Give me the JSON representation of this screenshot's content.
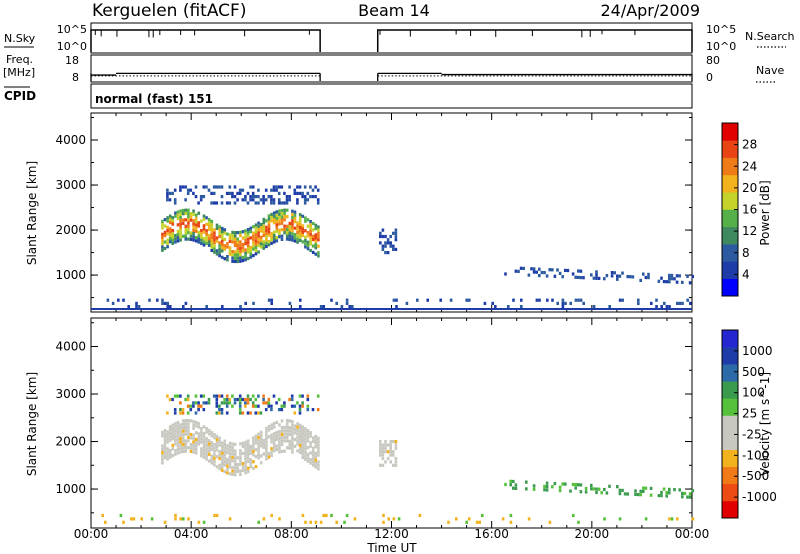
{
  "header": {
    "station": "Kerguelen (fitACF)",
    "beam": "Beam 14",
    "date": "24/Apr/2009"
  },
  "strip_labels": {
    "nsky": "N.Sky",
    "nsky_top": "10^5",
    "nsky_bottom": "10^0",
    "nsky_right_top": "10^5",
    "nsky_right_bottom": "10^0",
    "nsearch": "N.Search",
    "freq": "Freq.",
    "freq_unit": "[MHz]",
    "freq_top": "18",
    "freq_bottom": "8",
    "nave_top": "80",
    "nave_bottom": "0",
    "nave": "Nave",
    "cpid": "CPID",
    "mode": "normal (fast) 151"
  },
  "colors": {
    "power_scale": [
      "#0000ff",
      "#1e3ca8",
      "#2c5aa0",
      "#3e8a5e",
      "#55b04a",
      "#c4d22a",
      "#f2b21d",
      "#ee7a18",
      "#e84414",
      "#e00000"
    ],
    "velocity_scale": [
      "#e00000",
      "#ee4a14",
      "#f07a18",
      "#f2b21d",
      "#c8c8c0",
      "#c8c8c0",
      "#55c03a",
      "#3a9a4e",
      "#2c6aa8",
      "#1e3ca8",
      "#2626d0"
    ],
    "ground_scatter": "#c8c8c0"
  },
  "chart_data": [
    {
      "type": "heatmap",
      "title": "Power",
      "ylabel": "Slant Range [km]",
      "xlabel": "Time UT",
      "xlim": [
        "00:00",
        "24:00"
      ],
      "x_ticks": [
        "00:00",
        "04:00",
        "08:00",
        "12:00",
        "16:00",
        "20:00",
        "00:00"
      ],
      "ylim": [
        180,
        4600
      ],
      "y_ticks": [
        1000,
        2000,
        3000,
        4000
      ],
      "colorbar": {
        "label": "Power [dB]",
        "range": [
          0,
          30
        ],
        "ticks": [
          "4",
          "8",
          "12",
          "16",
          "20",
          "24",
          "28"
        ]
      },
      "regions": [
        {
          "name": "main echo band",
          "t_start": 2.8,
          "t_end": 9.1,
          "range_center": 1900,
          "range_width": 700,
          "level": "12-24"
        },
        {
          "name": "upper echoes",
          "t_start": 3.0,
          "t_end": 9.1,
          "range_center": 2800,
          "range_width": 400,
          "level": "4-12"
        },
        {
          "name": "midday echoes",
          "t_start": 11.5,
          "t_end": 12.2,
          "range_center": 1750,
          "range_width": 500,
          "level": "4-8"
        },
        {
          "name": "afternoon echoes",
          "t_start": 16.5,
          "t_end": 24.0,
          "range_center": 900,
          "range_width": 150,
          "level": "4-8"
        },
        {
          "name": "near range",
          "t_start": 0.0,
          "t_end": 24.0,
          "range_center": 400,
          "range_width": 200,
          "level": "4-8"
        }
      ],
      "data_gap": [
        9.15,
        11.45
      ]
    },
    {
      "type": "heatmap",
      "title": "Velocity",
      "ylabel": "Slant Range [km]",
      "xlabel": "Time UT",
      "xlim": [
        "00:00",
        "24:00"
      ],
      "x_ticks": [
        "00:00",
        "04:00",
        "08:00",
        "12:00",
        "16:00",
        "20:00",
        "00:00"
      ],
      "ylim": [
        180,
        4600
      ],
      "y_ticks": [
        1000,
        2000,
        3000,
        4000
      ],
      "colorbar": {
        "label": "Velocity [m s^-1]",
        "ticks": [
          "1000",
          "500",
          "100",
          "25",
          "-25",
          "-100",
          "-500",
          "-1000"
        ]
      },
      "regions": [
        {
          "name": "ground scatter band",
          "t_start": 2.8,
          "t_end": 9.1,
          "range_center": 1900,
          "range_width": 700,
          "value": "-25 to 25"
        },
        {
          "name": "upper echoes",
          "t_start": 3.0,
          "t_end": 9.1,
          "range_center": 2800,
          "range_width": 400,
          "value": "-500 to 1000"
        },
        {
          "name": "midday echoes",
          "t_start": 11.5,
          "t_end": 12.2,
          "range_center": 1750,
          "range_width": 500,
          "value": "-25 to 25"
        },
        {
          "name": "afternoon echoes",
          "t_start": 16.5,
          "t_end": 24.0,
          "range_center": 900,
          "range_width": 150,
          "value": "100 to 500"
        },
        {
          "name": "near range",
          "t_start": 0.0,
          "t_end": 24.0,
          "range_center": 400,
          "range_width": 200,
          "value": "-100 to 100"
        }
      ],
      "data_gap": [
        9.15,
        11.45
      ]
    }
  ],
  "time_series": {
    "nsky_high_segments": [
      [
        0.0,
        9.15
      ],
      [
        11.45,
        24.0
      ]
    ],
    "freq_segments": [
      [
        0.0,
        1.0,
        11.5
      ],
      [
        1.0,
        9.15,
        12.5
      ],
      [
        11.45,
        14.0,
        12.5
      ],
      [
        14.0,
        24.0,
        11.8
      ]
    ],
    "nave_level": 11.0
  }
}
